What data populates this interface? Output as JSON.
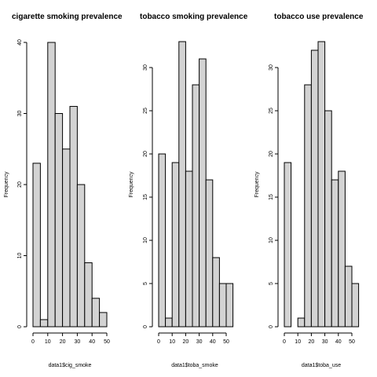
{
  "chart_data": [
    {
      "type": "bar",
      "title": "cigarette smoking prevalence",
      "xlabel": "data1$cig_smoke",
      "ylabel": "Frequency",
      "bin_edges": [
        0,
        5,
        10,
        15,
        20,
        25,
        30,
        35,
        40,
        45,
        50
      ],
      "values": [
        23,
        1,
        40,
        30,
        25,
        31,
        20,
        9,
        4,
        2
      ],
      "xticks": [
        0,
        10,
        20,
        30,
        40,
        50
      ],
      "yticks": [
        0,
        10,
        20,
        30,
        40
      ],
      "ylim": [
        0,
        40
      ],
      "grid": false
    },
    {
      "type": "bar",
      "title": "tobacco smoking prevalence",
      "xlabel": "data1$toba_smoke",
      "ylabel": "Frequency",
      "bin_edges": [
        0,
        5,
        10,
        15,
        20,
        25,
        30,
        35,
        40,
        45,
        50,
        55
      ],
      "values": [
        20,
        1,
        19,
        33,
        18,
        28,
        31,
        17,
        8,
        5,
        5
      ],
      "xticks": [
        0,
        10,
        20,
        30,
        40,
        50
      ],
      "yticks": [
        0,
        5,
        10,
        15,
        20,
        25,
        30
      ],
      "ylim": [
        0,
        33
      ],
      "grid": false
    },
    {
      "type": "bar",
      "title": "tobacco use prevalence",
      "xlabel": "data1$toba_use",
      "ylabel": "Frequency",
      "bin_edges": [
        0,
        5,
        10,
        15,
        20,
        25,
        30,
        35,
        40,
        45,
        50,
        55
      ],
      "values": [
        19,
        0,
        1,
        28,
        32,
        33,
        25,
        17,
        18,
        7,
        5
      ],
      "xticks": [
        0,
        10,
        20,
        30,
        40,
        50
      ],
      "yticks": [
        0,
        5,
        10,
        15,
        20,
        25,
        30
      ],
      "ylim": [
        0,
        33
      ],
      "grid": false
    }
  ]
}
